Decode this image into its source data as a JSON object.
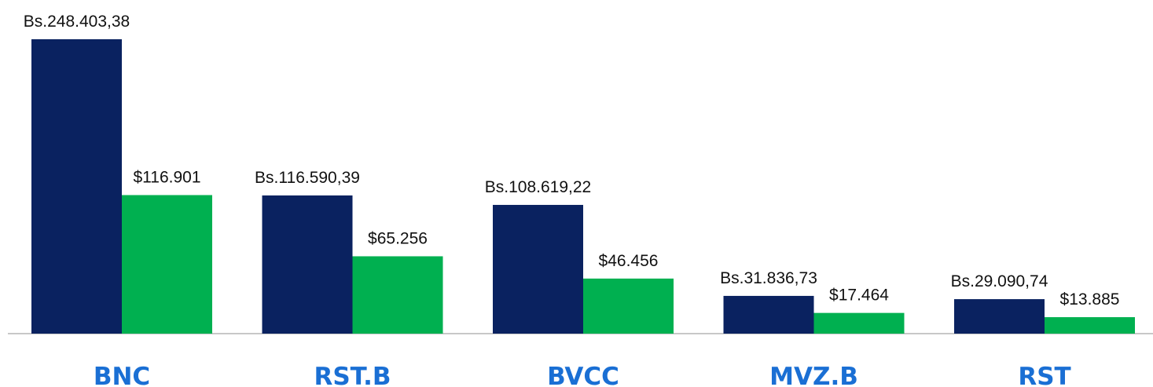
{
  "chart_data": {
    "type": "bar",
    "categories": [
      "BNC",
      "RST.B",
      "BVCC",
      "MVZ.B",
      "RST"
    ],
    "series": [
      {
        "color": "#0a2260",
        "values": [
          248403.38,
          116590.39,
          108619.22,
          31836.73,
          29090.74
        ],
        "value_labels": [
          "Bs.248.403,38",
          "Bs.116.590,39",
          "Bs.108.619,22",
          "Bs.31.836,73",
          "Bs.29.090,74"
        ]
      },
      {
        "color": "#00b050",
        "values": [
          116901,
          65256,
          46456,
          17464,
          13885
        ],
        "value_labels": [
          "$116.901",
          "$65.256",
          "$46.456",
          "$17.464",
          "$13.885"
        ]
      }
    ]
  }
}
